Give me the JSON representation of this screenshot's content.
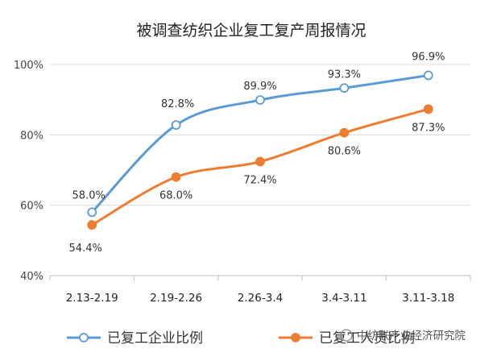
{
  "chart_data": {
    "type": "line",
    "title": "被调查纺织企业复工复产周报情况",
    "categories": [
      "2.13-2.19",
      "2.19-2.26",
      "2.26-3.4",
      "3.4-3.11",
      "3.11-3.18"
    ],
    "ylim": [
      40,
      100
    ],
    "yticks": [
      "40%",
      "60%",
      "80%",
      "100%"
    ],
    "grid": true,
    "legend_position": "bottom",
    "series": [
      {
        "name": "已复工企业比例",
        "values": [
          58.0,
          82.8,
          89.9,
          93.3,
          96.9
        ],
        "labels": [
          "58.0%",
          "82.8%",
          "89.9%",
          "93.3%",
          "96.9%"
        ],
        "color": "#5b9bd5",
        "marker": "hollow-circle"
      },
      {
        "name": "已复工人员比例",
        "values": [
          54.4,
          68.0,
          72.4,
          80.6,
          87.3
        ],
        "labels": [
          "54.4%",
          "68.0%",
          "72.4%",
          "80.6%",
          "87.3%"
        ],
        "color": "#ed7d31",
        "marker": "filled-circle"
      }
    ]
  },
  "watermark": "中纺联产业经济研究院",
  "watermark_icon": "wechat-icon"
}
